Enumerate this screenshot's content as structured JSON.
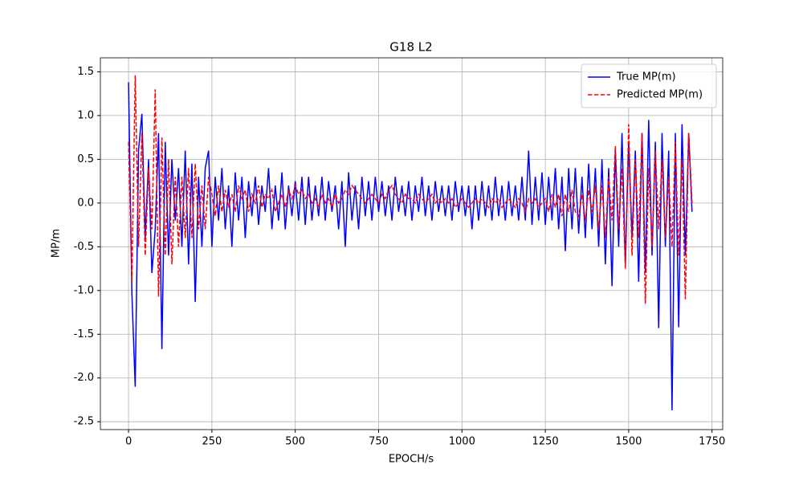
{
  "chart_data": {
    "type": "line",
    "title": "G18 L2",
    "x_label": "EPOCH/s",
    "y_label": "MP/m",
    "x": [
      0,
      10,
      20,
      30,
      40,
      50,
      60,
      70,
      80,
      90,
      100,
      110,
      120,
      130,
      140,
      150,
      160,
      170,
      180,
      190,
      200,
      210,
      220,
      230,
      240,
      250,
      260,
      270,
      280,
      290,
      300,
      310,
      320,
      330,
      340,
      350,
      360,
      370,
      380,
      390,
      400,
      410,
      420,
      430,
      440,
      450,
      460,
      470,
      480,
      490,
      500,
      510,
      520,
      530,
      540,
      550,
      560,
      570,
      580,
      590,
      600,
      610,
      620,
      630,
      640,
      650,
      660,
      670,
      680,
      690,
      700,
      710,
      720,
      730,
      740,
      750,
      760,
      770,
      780,
      790,
      800,
      810,
      820,
      830,
      840,
      850,
      860,
      870,
      880,
      890,
      900,
      910,
      920,
      930,
      940,
      950,
      960,
      970,
      980,
      990,
      1000,
      1010,
      1020,
      1030,
      1040,
      1050,
      1060,
      1070,
      1080,
      1090,
      1100,
      1110,
      1120,
      1130,
      1140,
      1150,
      1160,
      1170,
      1180,
      1190,
      1200,
      1210,
      1220,
      1230,
      1240,
      1250,
      1260,
      1270,
      1280,
      1290,
      1300,
      1310,
      1320,
      1330,
      1340,
      1350,
      1360,
      1370,
      1380,
      1390,
      1400,
      1410,
      1420,
      1430,
      1440,
      1450,
      1460,
      1470,
      1480,
      1490,
      1500,
      1510,
      1520,
      1530,
      1540,
      1550,
      1560,
      1570,
      1580,
      1590,
      1600,
      1610,
      1620,
      1630,
      1640,
      1650,
      1660,
      1670,
      1680,
      1690
    ],
    "series": [
      {
        "name": "True MP(m)",
        "color": "#0000ff",
        "dash": false,
        "values": [
          1.38,
          -1.03,
          -2.1,
          0.6,
          1.02,
          -0.4,
          0.5,
          -0.8,
          -0.3,
          0.8,
          -1.67,
          0.7,
          -0.6,
          0.5,
          -0.2,
          0.4,
          -0.5,
          0.6,
          -0.7,
          0.45,
          -1.13,
          0.3,
          -0.5,
          0.4,
          0.6,
          -0.5,
          0.3,
          -0.2,
          0.4,
          -0.3,
          0.2,
          -0.5,
          0.35,
          -0.2,
          0.3,
          -0.4,
          0.25,
          -0.15,
          0.3,
          -0.25,
          0.2,
          -0.1,
          0.4,
          -0.3,
          0.2,
          -0.2,
          0.35,
          -0.3,
          0.2,
          -0.15,
          0.25,
          -0.2,
          0.3,
          -0.25,
          0.3,
          -0.2,
          0.2,
          -0.15,
          0.3,
          -0.2,
          0.25,
          -0.1,
          0.2,
          -0.3,
          0.25,
          -0.5,
          0.35,
          -0.2,
          0.2,
          -0.3,
          0.3,
          -0.15,
          0.25,
          -0.2,
          0.3,
          -0.1,
          0.25,
          -0.15,
          0.2,
          -0.2,
          0.3,
          -0.1,
          0.2,
          -0.15,
          0.25,
          -0.2,
          0.2,
          -0.1,
          0.3,
          -0.15,
          0.2,
          -0.2,
          0.25,
          -0.1,
          0.2,
          -0.15,
          0.2,
          -0.2,
          0.25,
          -0.1,
          0.2,
          -0.15,
          0.2,
          -0.3,
          0.2,
          -0.2,
          0.25,
          -0.15,
          0.2,
          -0.2,
          0.3,
          -0.15,
          0.2,
          -0.2,
          0.25,
          -0.15,
          0.2,
          -0.2,
          0.3,
          -0.2,
          0.6,
          -0.25,
          0.3,
          -0.2,
          0.35,
          -0.25,
          0.3,
          -0.2,
          0.4,
          -0.3,
          0.3,
          -0.55,
          0.4,
          -0.3,
          0.4,
          -0.35,
          0.3,
          -0.4,
          0.45,
          -0.3,
          0.4,
          -0.5,
          0.5,
          -0.7,
          0.4,
          -0.95,
          0.6,
          -0.5,
          0.8,
          -0.7,
          0.7,
          -0.4,
          0.6,
          -0.9,
          0.8,
          -0.8,
          0.95,
          -0.6,
          0.7,
          -1.43,
          0.8,
          -0.5,
          0.6,
          -2.37,
          0.8,
          -1.42,
          0.9,
          -0.6,
          0.8,
          -0.1
        ]
      },
      {
        "name": "Predicted MP(m)",
        "color": "#ff0000",
        "dash": true,
        "values": [
          0.7,
          -0.9,
          1.46,
          -0.5,
          0.8,
          -0.6,
          0.4,
          -0.3,
          1.3,
          -1.07,
          0.75,
          -0.6,
          0.5,
          -0.7,
          0.3,
          -0.5,
          0.3,
          -0.4,
          0.4,
          -0.4,
          0.45,
          -0.3,
          0.2,
          -0.3,
          0.3,
          0.1,
          -0.15,
          0.2,
          -0.1,
          0.15,
          -0.05,
          0.1,
          -0.1,
          0.2,
          0.05,
          0.15,
          -0.1,
          0.1,
          0.0,
          0.2,
          -0.05,
          0.1,
          0.05,
          0.15,
          -0.1,
          0.0,
          0.1,
          -0.05,
          0.15,
          0.05,
          0.2,
          0.1,
          0.15,
          0.05,
          0.1,
          0.0,
          0.05,
          -0.05,
          0.1,
          0.0,
          0.05,
          -0.05,
          0.1,
          0.0,
          0.05,
          0.15,
          0.1,
          0.2,
          0.15,
          0.1,
          0.05,
          0.0,
          0.05,
          0.1,
          0.05,
          0.0,
          0.1,
          0.05,
          0.15,
          0.2,
          0.1,
          0.05,
          0.0,
          0.1,
          0.05,
          0.05,
          0.0,
          0.1,
          0.05,
          0.0,
          0.05,
          0.1,
          0.0,
          0.05,
          0.0,
          0.05,
          0.0,
          0.05,
          -0.05,
          0.0,
          0.05,
          0.0,
          -0.05,
          0.0,
          0.05,
          0.0,
          0.05,
          0.0,
          -0.05,
          0.05,
          0.0,
          0.05,
          -0.05,
          0.0,
          0.05,
          0.0,
          -0.05,
          0.05,
          0.0,
          -0.1,
          0.05,
          0.0,
          0.05,
          -0.05,
          0.0,
          0.05,
          -0.1,
          0.1,
          -0.05,
          0.1,
          -0.15,
          0.1,
          -0.1,
          0.15,
          -0.1,
          -0.15,
          0.1,
          -0.2,
          0.15,
          -0.1,
          0.2,
          -0.3,
          0.2,
          -0.4,
          0.3,
          -0.2,
          0.65,
          -0.3,
          0.4,
          -0.75,
          0.9,
          -0.6,
          0.5,
          -0.4,
          0.8,
          -1.15,
          0.4,
          -0.5,
          0.6,
          -0.3,
          0.5,
          -0.4,
          0.3,
          -0.5,
          0.7,
          -0.6,
          0.5,
          -1.1,
          0.8,
          0.0
        ]
      }
    ],
    "xlim": [
      -84.5,
      1782
    ],
    "ylim": [
      -2.59,
      1.66
    ],
    "xticks": [
      0,
      250,
      500,
      750,
      1000,
      1250,
      1500,
      1750
    ],
    "yticks": [
      -2.5,
      {
        "value": -2,
        "label": "-2.0"
      },
      -1.5,
      {
        "value": -1,
        "label": "-1.0"
      },
      -0.5,
      {
        "value": 0,
        "label": "0.0"
      },
      0.5,
      {
        "value": 1,
        "label": "1.0"
      },
      1.5
    ],
    "grid": true,
    "legend": "upper right"
  }
}
